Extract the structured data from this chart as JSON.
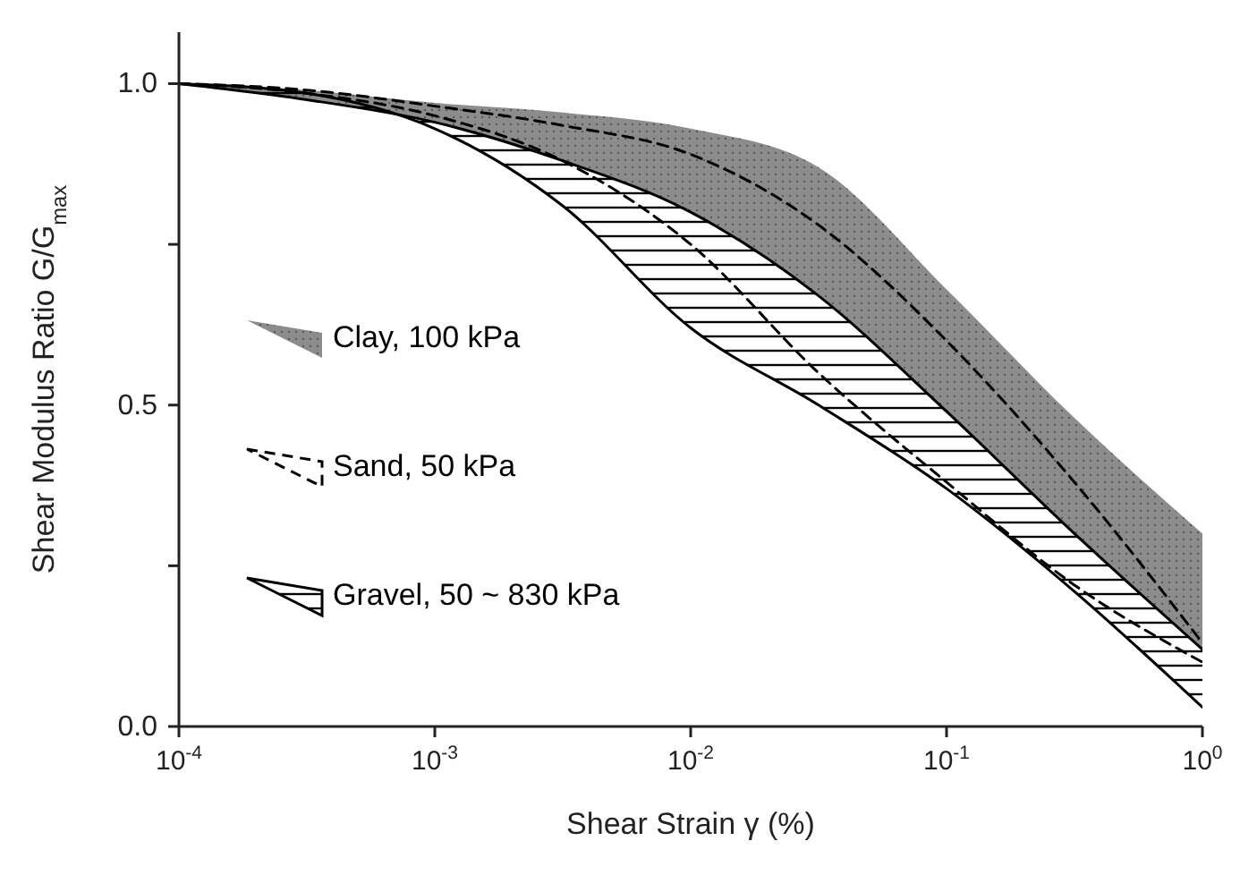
{
  "chart_data": {
    "type": "line",
    "xlabel": "Shear Strain γ (%)",
    "ylabel": "Shear Modulus Ratio G/G$_{max}$",
    "log": "x",
    "x": [
      0.0001,
      0.000316,
      0.001,
      0.00316,
      0.01,
      0.0316,
      0.1,
      0.316,
      1
    ],
    "series": [
      {
        "name": "Clay, 100 kPa",
        "color": "#8c8c8c",
        "line_style": "solid",
        "values": [
          null,
          null,
          null,
          null,
          null,
          null,
          null,
          null,
          null
        ],
        "lower": [
          1.0,
          0.975,
          0.94,
          0.88,
          0.8,
          0.67,
          0.49,
          0.3,
          0.12
        ],
        "upper": [
          1.0,
          0.99,
          0.97,
          0.955,
          0.93,
          0.87,
          0.68,
          0.48,
          0.3
        ]
      },
      {
        "name": "Sand, 50 kPa",
        "color": "#000000",
        "line_style": "dashed",
        "values": [
          1.0,
          0.99,
          0.965,
          0.935,
          0.89,
          0.78,
          0.6,
          0.38,
          0.13
        ]
      },
      {
        "color": "#000000",
        "line_style": "dashed",
        "values": [
          1.0,
          0.985,
          0.95,
          0.88,
          0.75,
          0.55,
          0.38,
          0.22,
          0.1
        ]
      },
      {
        "name": "Gravel, 50 ~ 830 kPa",
        "color": "#000000",
        "line_style": "solid",
        "values": [
          null,
          null,
          null,
          null,
          null,
          null,
          null,
          null,
          null
        ],
        "lower": [
          1.0,
          0.985,
          0.93,
          0.81,
          0.62,
          0.5,
          0.37,
          0.21,
          0.03
        ],
        "upper": [
          1.0,
          0.975,
          0.94,
          0.88,
          0.8,
          0.67,
          0.49,
          0.3,
          0.12
        ]
      },
      {
        "color": "#000000",
        "line_style": "solid",
        "values": [
          1.0,
          0.975,
          0.94,
          0.88,
          0.8,
          0.67,
          0.49,
          0.3,
          0.12
        ]
      },
      {
        "color": "#000000",
        "line_style": "solid",
        "values": [
          1.0,
          0.985,
          0.93,
          0.81,
          0.62,
          0.5,
          0.37,
          0.21,
          0.03
        ]
      }
    ],
    "xlim": [
      0.0001,
      1
    ],
    "xticks": [
      {
        "value": 0.0001,
        "label": "10$^{-4}$"
      },
      {
        "value": 0.001,
        "label": "10$^{-3}$"
      },
      {
        "value": 0.01,
        "label": "10$^{-2}$"
      },
      {
        "value": 0.1,
        "label": "10$^{-1}$"
      },
      {
        "value": 1,
        "label": "10$^{0}$"
      }
    ],
    "ylim": [
      0,
      1.08
    ],
    "yticks": [
      {
        "value": 0,
        "label": "0.0"
      },
      {
        "value": 0.25,
        "label": null
      },
      {
        "value": 0.5,
        "label": "0.5"
      },
      {
        "value": 0.75,
        "label": null
      },
      {
        "value": 1,
        "label": "1.0"
      }
    ],
    "grid": false,
    "legend": "left"
  }
}
